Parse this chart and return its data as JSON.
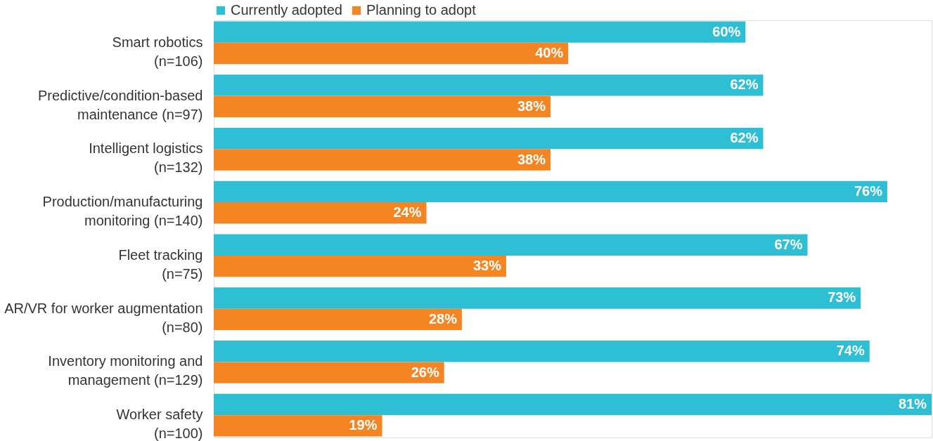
{
  "chart_data": {
    "type": "bar",
    "orientation": "horizontal",
    "legend": "top",
    "categories": [
      "Smart robotics\n(n=106)",
      "Predictive/condition-based\nmaintenance (n=97)",
      "Intelligent logistics\n(n=132)",
      "Production/manufacturing\nmonitoring (n=140)",
      "Fleet tracking\n(n=75)",
      "AR/VR for worker augmentation\n(n=80)",
      "Inventory monitoring and\nmanagement (n=129)",
      "Worker safety\n(n=100)"
    ],
    "series": [
      {
        "name": "Currently adopted",
        "color": "#2ebfd5",
        "values": [
          60,
          62,
          62,
          76,
          67,
          73,
          74,
          81
        ],
        "value_labels": [
          "60%",
          "62%",
          "62%",
          "76%",
          "67%",
          "73%",
          "74%",
          "81%"
        ]
      },
      {
        "name": "Planning to adopt",
        "color": "#f58523",
        "values": [
          40,
          38,
          38,
          24,
          33,
          28,
          26,
          19
        ],
        "value_labels": [
          "40%",
          "38%",
          "38%",
          "24%",
          "33%",
          "28%",
          "26%",
          "19%"
        ]
      }
    ]
  }
}
